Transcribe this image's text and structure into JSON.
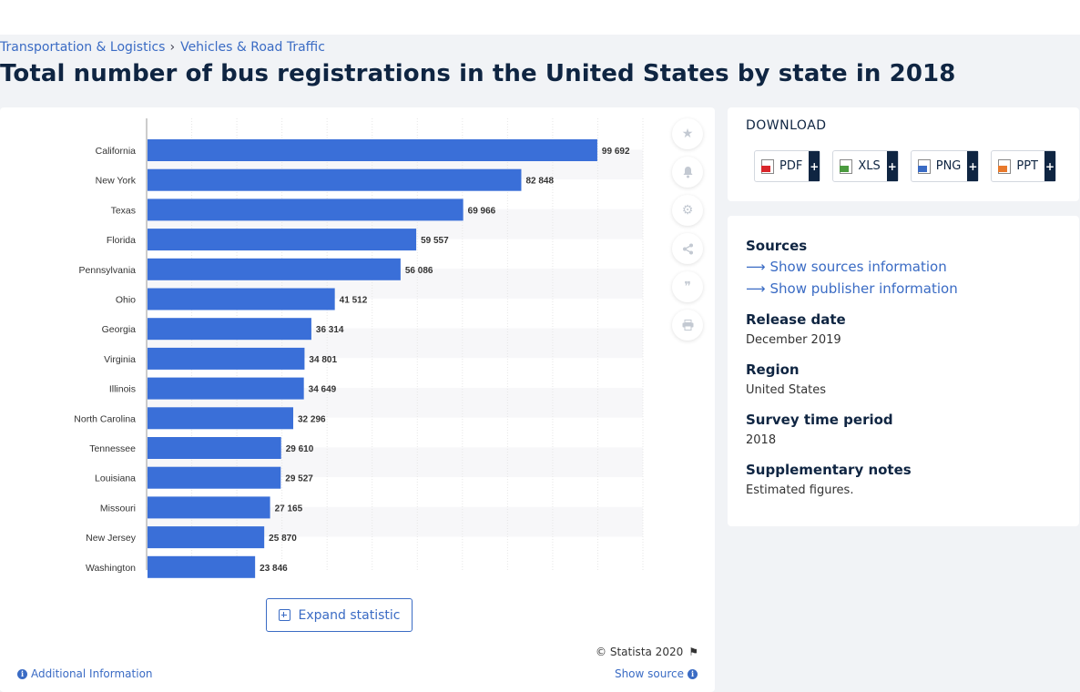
{
  "breadcrumb": {
    "item1": "Transportation & Logistics",
    "sep": "›",
    "item2": "Vehicles & Road Traffic"
  },
  "page_title": "Total number of bus registrations in the United States by state in 2018",
  "expand_label": "Expand statistic",
  "copyright": "© Statista 2020",
  "additional_info": "Additional Information",
  "show_source": "Show source",
  "download": {
    "title": "DOWNLOAD",
    "buttons": [
      {
        "label": "PDF",
        "plus": "+",
        "icon": "pdf-file-icon",
        "color": "#d9262b"
      },
      {
        "label": "XLS",
        "plus": "+",
        "icon": "xls-file-icon",
        "color": "#4b9b3f"
      },
      {
        "label": "PNG",
        "plus": "+",
        "icon": "png-file-icon",
        "color": "#3a6bc4"
      },
      {
        "label": "PPT",
        "plus": "+",
        "icon": "ppt-file-icon",
        "color": "#e8792c"
      }
    ]
  },
  "meta": {
    "sources_heading": "Sources",
    "show_sources": "Show sources information",
    "show_publisher": "Show publisher information",
    "release_heading": "Release date",
    "release_value": "December 2019",
    "region_heading": "Region",
    "region_value": "United States",
    "survey_heading": "Survey time period",
    "survey_value": "2018",
    "notes_heading": "Supplementary notes",
    "notes_value": "Estimated figures."
  },
  "tools": [
    "star-icon",
    "bell-icon",
    "gear-icon",
    "share-icon",
    "quote-icon",
    "print-icon"
  ],
  "colors": {
    "bar": "#3a6fd8",
    "accent": "#3a6bc4",
    "title": "#0f2542"
  },
  "chart_data": {
    "type": "bar",
    "orientation": "horizontal",
    "categories": [
      "California",
      "New York",
      "Texas",
      "Florida",
      "Pennsylvania",
      "Ohio",
      "Georgia",
      "Virginia",
      "Illinois",
      "North Carolina",
      "Tennessee",
      "Louisiana",
      "Missouri",
      "New Jersey",
      "Washington"
    ],
    "values": [
      99692,
      82848,
      69966,
      59557,
      56086,
      41512,
      36314,
      34801,
      34649,
      32296,
      29610,
      29527,
      27165,
      25870,
      23846
    ],
    "value_labels": [
      "99 692",
      "82 848",
      "69 966",
      "59 557",
      "56 086",
      "41 512",
      "36 314",
      "34 801",
      "34 649",
      "32 296",
      "29 610",
      "29 527",
      "27 165",
      "25 870",
      "23 846"
    ],
    "xlim": [
      0,
      110000
    ],
    "grid": true
  }
}
